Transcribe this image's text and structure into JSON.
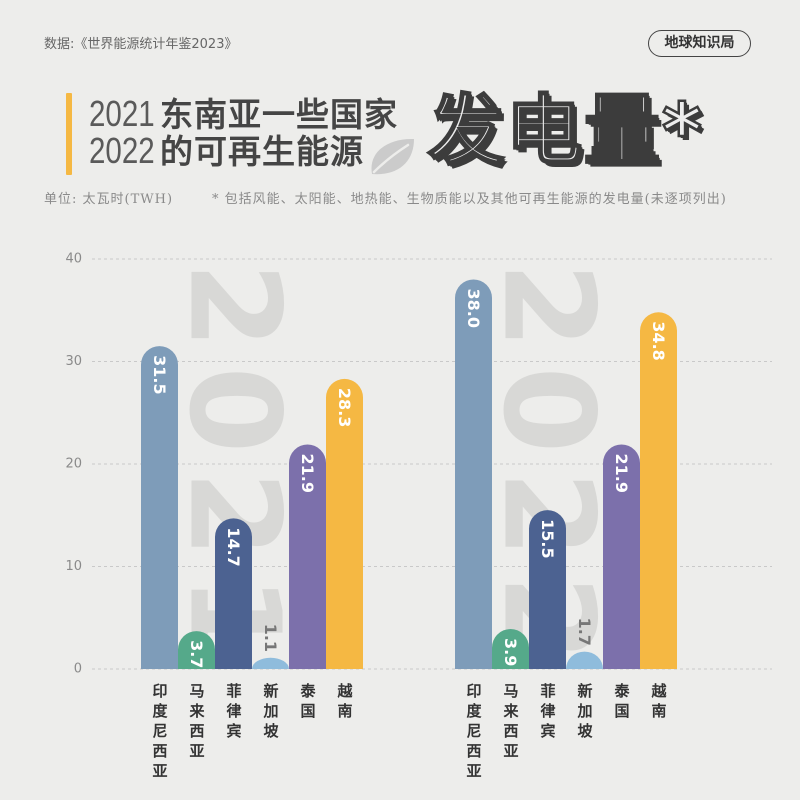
{
  "source": "数据:《世界能源统计年鉴2023》",
  "brand": "地球知识局",
  "header": {
    "years": [
      "2021",
      "2022"
    ],
    "title_line1": "东南亚一些国家",
    "title_line2": "的可再生能源",
    "title_big": "发电量*",
    "unit_note": "单位: 太瓦时(TWH)",
    "footnote": "* 包括风能、太阳能、地热能、生物质能以及其他可再生能源的发电量(未逐项列出)"
  },
  "icons": {
    "title_decoration": "leaf-icon"
  },
  "colors": {
    "background": "#ededeb",
    "accent": "#f5b843",
    "text": "#444444"
  },
  "chart_data": {
    "type": "bar",
    "categories": [
      "印度尼西亚",
      "马来西亚",
      "菲律宾",
      "新加坡",
      "泰国",
      "越南"
    ],
    "series": [
      {
        "name": "2021",
        "values": [
          31.5,
          3.7,
          14.7,
          1.1,
          21.9,
          28.3
        ]
      },
      {
        "name": "2022",
        "values": [
          38.0,
          3.9,
          15.5,
          1.7,
          21.9,
          34.8
        ]
      }
    ],
    "bar_colors": [
      "#7e9cb9",
      "#55a98a",
      "#4c6291",
      "#8fbcdc",
      "#7c70ab",
      "#f5b843"
    ],
    "ylim": [
      0,
      40
    ],
    "yticks": [
      0,
      10,
      20,
      30,
      40
    ],
    "grid": true,
    "legend": "none"
  }
}
